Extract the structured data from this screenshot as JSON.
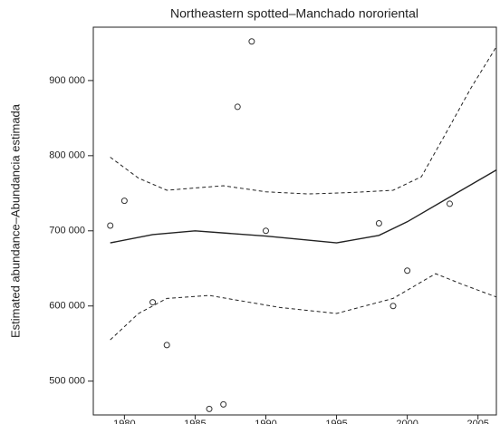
{
  "chart_data": {
    "type": "scatter",
    "title": "Northeastern spotted–Manchado nororiental",
    "y_label": "Estimated abundance–Abundancia estimada",
    "x": [
      1979,
      1980,
      1982,
      1983,
      1986,
      1987,
      1988,
      1989,
      1990,
      1998,
      1999,
      2000,
      2003
    ],
    "values": [
      707000,
      740000,
      605000,
      548000,
      463000,
      469000,
      865000,
      952000,
      700000,
      710000,
      600000,
      647000,
      736000
    ],
    "color": "#333333",
    "lines": [
      {
        "style": "solid",
        "x": [
          1979,
          1982,
          1985,
          1990,
          1995,
          1998,
          2000,
          2003,
          2006.3
        ],
        "values": [
          684000,
          695000,
          700000,
          693000,
          684000,
          694000,
          712000,
          745000,
          781000
        ]
      },
      {
        "style": "dashed",
        "x": [
          1979,
          1981,
          1983,
          1987,
          1990,
          1993,
          1996,
          1999,
          2001,
          2003,
          2004.5,
          2006.3
        ],
        "values": [
          798000,
          770000,
          754000,
          760000,
          752000,
          749000,
          751000,
          754000,
          772000,
          839000,
          890000,
          945000
        ]
      },
      {
        "style": "dashed",
        "x": [
          1979,
          1981,
          1983,
          1986,
          1991,
          1995,
          1999,
          2002,
          2004,
          2006.3
        ],
        "values": [
          555000,
          590000,
          610000,
          614000,
          598000,
          590000,
          610000,
          643000,
          628000,
          612000
        ]
      }
    ],
    "xlim": [
      1977.8,
      2006.3
    ],
    "ylim": [
      455000,
      971000
    ],
    "xticks": [
      1980,
      1985,
      1990,
      1995,
      2000,
      2005
    ],
    "yticks": [
      {
        "value": 500000,
        "label": "500 000"
      },
      {
        "value": 600000,
        "label": "600 000"
      },
      {
        "value": 700000,
        "label": "700 000"
      },
      {
        "value": 800000,
        "label": "800 000"
      },
      {
        "value": 900000,
        "label": "900 000"
      }
    ]
  }
}
